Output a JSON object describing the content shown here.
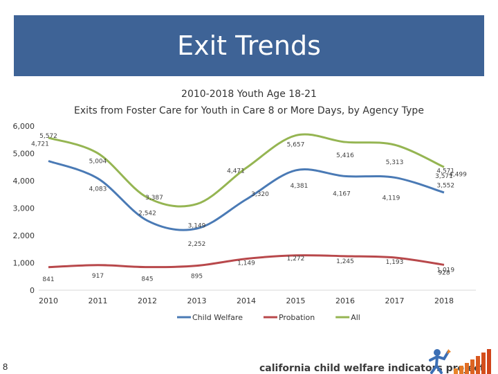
{
  "slide": {
    "title": "Exit Trends",
    "page_number": "8",
    "footer_logo_text": "california child welfare indicators project"
  },
  "colors": {
    "banner": "#3e6396",
    "child_welfare": "#4a7ab5",
    "probation": "#b8484b",
    "all": "#95b552"
  },
  "chart_data": {
    "type": "line",
    "title": "2010-2018 Youth Age 18-21",
    "subtitle": "Exits from Foster Care for Youth in Care 8 or More Days, by Agency Type",
    "categories": [
      "2010",
      "2011",
      "2012",
      "2013",
      "2014",
      "2015",
      "2016",
      "2017",
      "2018"
    ],
    "ylim": [
      0,
      6000
    ],
    "yticks": [
      "0",
      "1,000",
      "2,000",
      "3,000",
      "4,000",
      "5,000",
      "6,000"
    ],
    "legend_position": "bottom",
    "series": [
      {
        "name": "Child Welfare",
        "values": [
          4721,
          4083,
          2542,
          2252,
          3320,
          4381,
          4167,
          4119,
          3571
        ],
        "labels": [
          "4,721",
          "4,083",
          "2,542",
          "2,252",
          "3,320",
          "4,381",
          "4,167",
          "4,119",
          "3,571"
        ],
        "extra_label": "3,552"
      },
      {
        "name": "Probation",
        "values": [
          841,
          917,
          845,
          895,
          1149,
          1272,
          1245,
          1193,
          928
        ],
        "labels": [
          "841",
          "917",
          "845",
          "895",
          "1,149",
          "1,272",
          "1,245",
          "1,193",
          "928"
        ],
        "extra_label": "1,019"
      },
      {
        "name": "All",
        "values": [
          5572,
          5004,
          3387,
          3149,
          4471,
          5657,
          5416,
          5313,
          4499
        ],
        "labels": [
          "5,572",
          "5,004",
          "3,387",
          "3,149",
          "4,471",
          "5,657",
          "5,416",
          "5,313",
          "4,499"
        ],
        "extra_label": "4,571"
      }
    ]
  }
}
